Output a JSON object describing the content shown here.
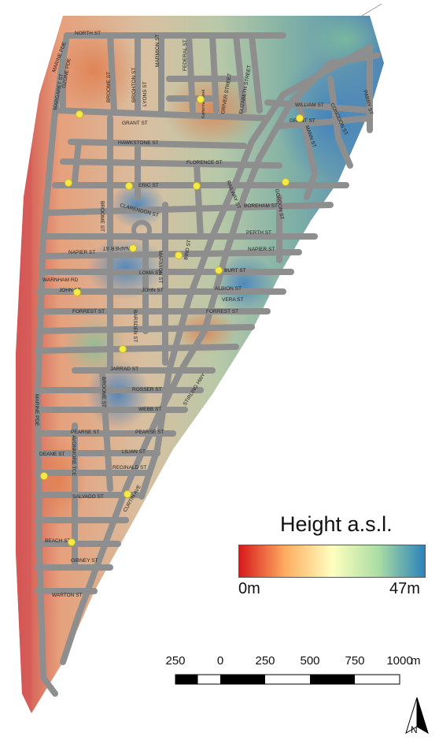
{
  "legend": {
    "title": "Height a.s.l.",
    "min_label": "0m",
    "max_label": "47m",
    "colors": [
      "#d7191c",
      "#fdae61",
      "#ffffbf",
      "#abdda4",
      "#2b83ba"
    ]
  },
  "scale_bar": {
    "ticks": [
      "250",
      "0",
      "250",
      "500",
      "750",
      "1000"
    ],
    "unit": "m"
  },
  "north_arrow": {
    "label": "N"
  },
  "streets": [
    "NORTH ST",
    "MARINE PDE",
    "OZONE PDE",
    "MARGARET ST",
    "BROOME ST",
    "BRIGHTON ST",
    "MARMION ST",
    "LYONS ST",
    "FEDERAL ST",
    "Katherine Street",
    "GRIVER STREET",
    "ELIZABETH STREET",
    "WILLIAM ST",
    "CONGDON ST",
    "PARRY ST",
    "GRANT ST",
    "HAWKSTONE ST",
    "MANN ST",
    "FLORENCE ST",
    "ERIC ST",
    "RAILWAY ST",
    "GORDON ST",
    "CLARENDON ST",
    "BOREHAM ST",
    "BROOME ST",
    "PERTH ST",
    "NAPIER ST",
    "NAPIER ST",
    "NAPIER ST",
    "MARMION ST",
    "BIRD ST",
    "BURT ST",
    "LOMA ST",
    "WARNHAM RD",
    "JOHN ST",
    "JOHN ST",
    "ALBION ST",
    "VERA ST",
    "FORREST ST",
    "FORREST ST",
    "BARSDEN ST",
    "JARRAD ST",
    "BROOME ST",
    "STIRLING HWY",
    "ROSSER ST",
    "WEBB ST",
    "MARINE PDE",
    "PEARSE ST",
    "PEARSE ST",
    "DEANE ST",
    "AVONMORE TCE",
    "LILIAN ST",
    "REGINALD ST",
    "SALVADO ST",
    "CURTIN AVE",
    "BEACH ST",
    "GIBNEY ST",
    "WARTON ST"
  ],
  "points_of_interest": 15
}
